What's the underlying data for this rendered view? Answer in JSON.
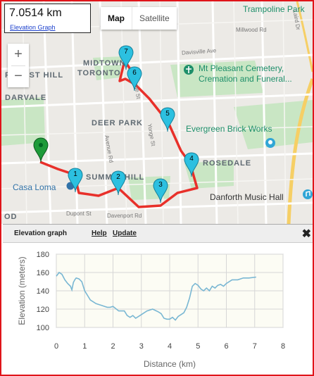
{
  "distance": {
    "value": "7.0514 km",
    "link": "Elevation Graph"
  },
  "map_type": {
    "map": "Map",
    "satellite": "Satellite"
  },
  "zoom": {
    "in": "+",
    "out": "−"
  },
  "map_labels": [
    {
      "text": "Trampoline Park",
      "cls": "poi"
    },
    {
      "text": "Millwood Rd",
      "cls": "street"
    },
    {
      "text": "Davisville Ave",
      "cls": "street"
    },
    {
      "text": "Laird Dr",
      "cls": "street"
    },
    {
      "text": "MIDTOWN",
      "cls": "area"
    },
    {
      "text": "TORONTO",
      "cls": "area"
    },
    {
      "text": "FOREST HILL",
      "cls": "area"
    },
    {
      "text": "DARVALE",
      "cls": "area"
    },
    {
      "text": "Mt Pleasant Cemetery,",
      "cls": "poi"
    },
    {
      "text": "Cremation and Funeral...",
      "cls": "poi"
    },
    {
      "text": "DEER PARK",
      "cls": "area"
    },
    {
      "text": "Evergreen Brick Works",
      "cls": "poi"
    },
    {
      "text": "Avenue Rd",
      "cls": "street"
    },
    {
      "text": "Yonge St",
      "cls": "street"
    },
    {
      "text": "Yonge St",
      "cls": "street"
    },
    {
      "text": "ROSEDALE",
      "cls": "area"
    },
    {
      "text": "Casa Loma",
      "cls": "blue"
    },
    {
      "text": "SUMMERHILL",
      "cls": "area"
    },
    {
      "text": "Danforth Music Hall",
      "cls": "place"
    },
    {
      "text": "Dupont St",
      "cls": "street"
    },
    {
      "text": "Davenport Rd",
      "cls": "street"
    },
    {
      "text": "OD",
      "cls": "area"
    }
  ],
  "markers": [
    {
      "label": "1"
    },
    {
      "label": "2"
    },
    {
      "label": "3"
    },
    {
      "label": "4"
    },
    {
      "label": "5"
    },
    {
      "label": "6"
    },
    {
      "label": "7"
    }
  ],
  "panel": {
    "title": "Elevation graph",
    "help": "Help",
    "update": "Update",
    "close": "✖"
  },
  "colors": {
    "route": "#e8302a",
    "marker": "#2cc0e0",
    "start": "#1e9b3a",
    "elevation_line": "#79b7d3"
  },
  "chart_data": {
    "type": "line",
    "xlabel": "Distance (km)",
    "ylabel": "Elevation (meters)",
    "xlim": [
      0,
      8
    ],
    "ylim": [
      100,
      180
    ],
    "xticks": [
      0,
      1,
      2,
      3,
      4,
      5,
      6,
      7,
      8
    ],
    "yticks": [
      100,
      120,
      140,
      160,
      180
    ],
    "grid": true,
    "x": [
      0,
      0.1,
      0.2,
      0.3,
      0.4,
      0.5,
      0.55,
      0.6,
      0.65,
      0.7,
      0.8,
      0.9,
      1.0,
      1.1,
      1.2,
      1.3,
      1.4,
      1.5,
      1.6,
      1.7,
      1.8,
      1.9,
      2.0,
      2.2,
      2.4,
      2.5,
      2.6,
      2.7,
      2.8,
      3.0,
      3.2,
      3.4,
      3.6,
      3.7,
      3.8,
      3.9,
      4.0,
      4.1,
      4.2,
      4.3,
      4.4,
      4.5,
      4.6,
      4.7,
      4.8,
      4.9,
      5.0,
      5.1,
      5.2,
      5.3,
      5.4,
      5.5,
      5.6,
      5.7,
      5.8,
      5.9,
      6.0,
      6.2,
      6.4,
      6.6,
      6.8,
      7.05
    ],
    "y": [
      156,
      160,
      158,
      152,
      148,
      145,
      141,
      149,
      152,
      154,
      153,
      150,
      140,
      135,
      130,
      128,
      126,
      125,
      124,
      123,
      122,
      122,
      123,
      118,
      118,
      113,
      111,
      113,
      110,
      114,
      118,
      120,
      117,
      115,
      110,
      109,
      109,
      111,
      108,
      112,
      114,
      116,
      122,
      132,
      145,
      148,
      146,
      142,
      140,
      143,
      140,
      145,
      143,
      146,
      147,
      145,
      148,
      152,
      152,
      154,
      154,
      155
    ]
  }
}
